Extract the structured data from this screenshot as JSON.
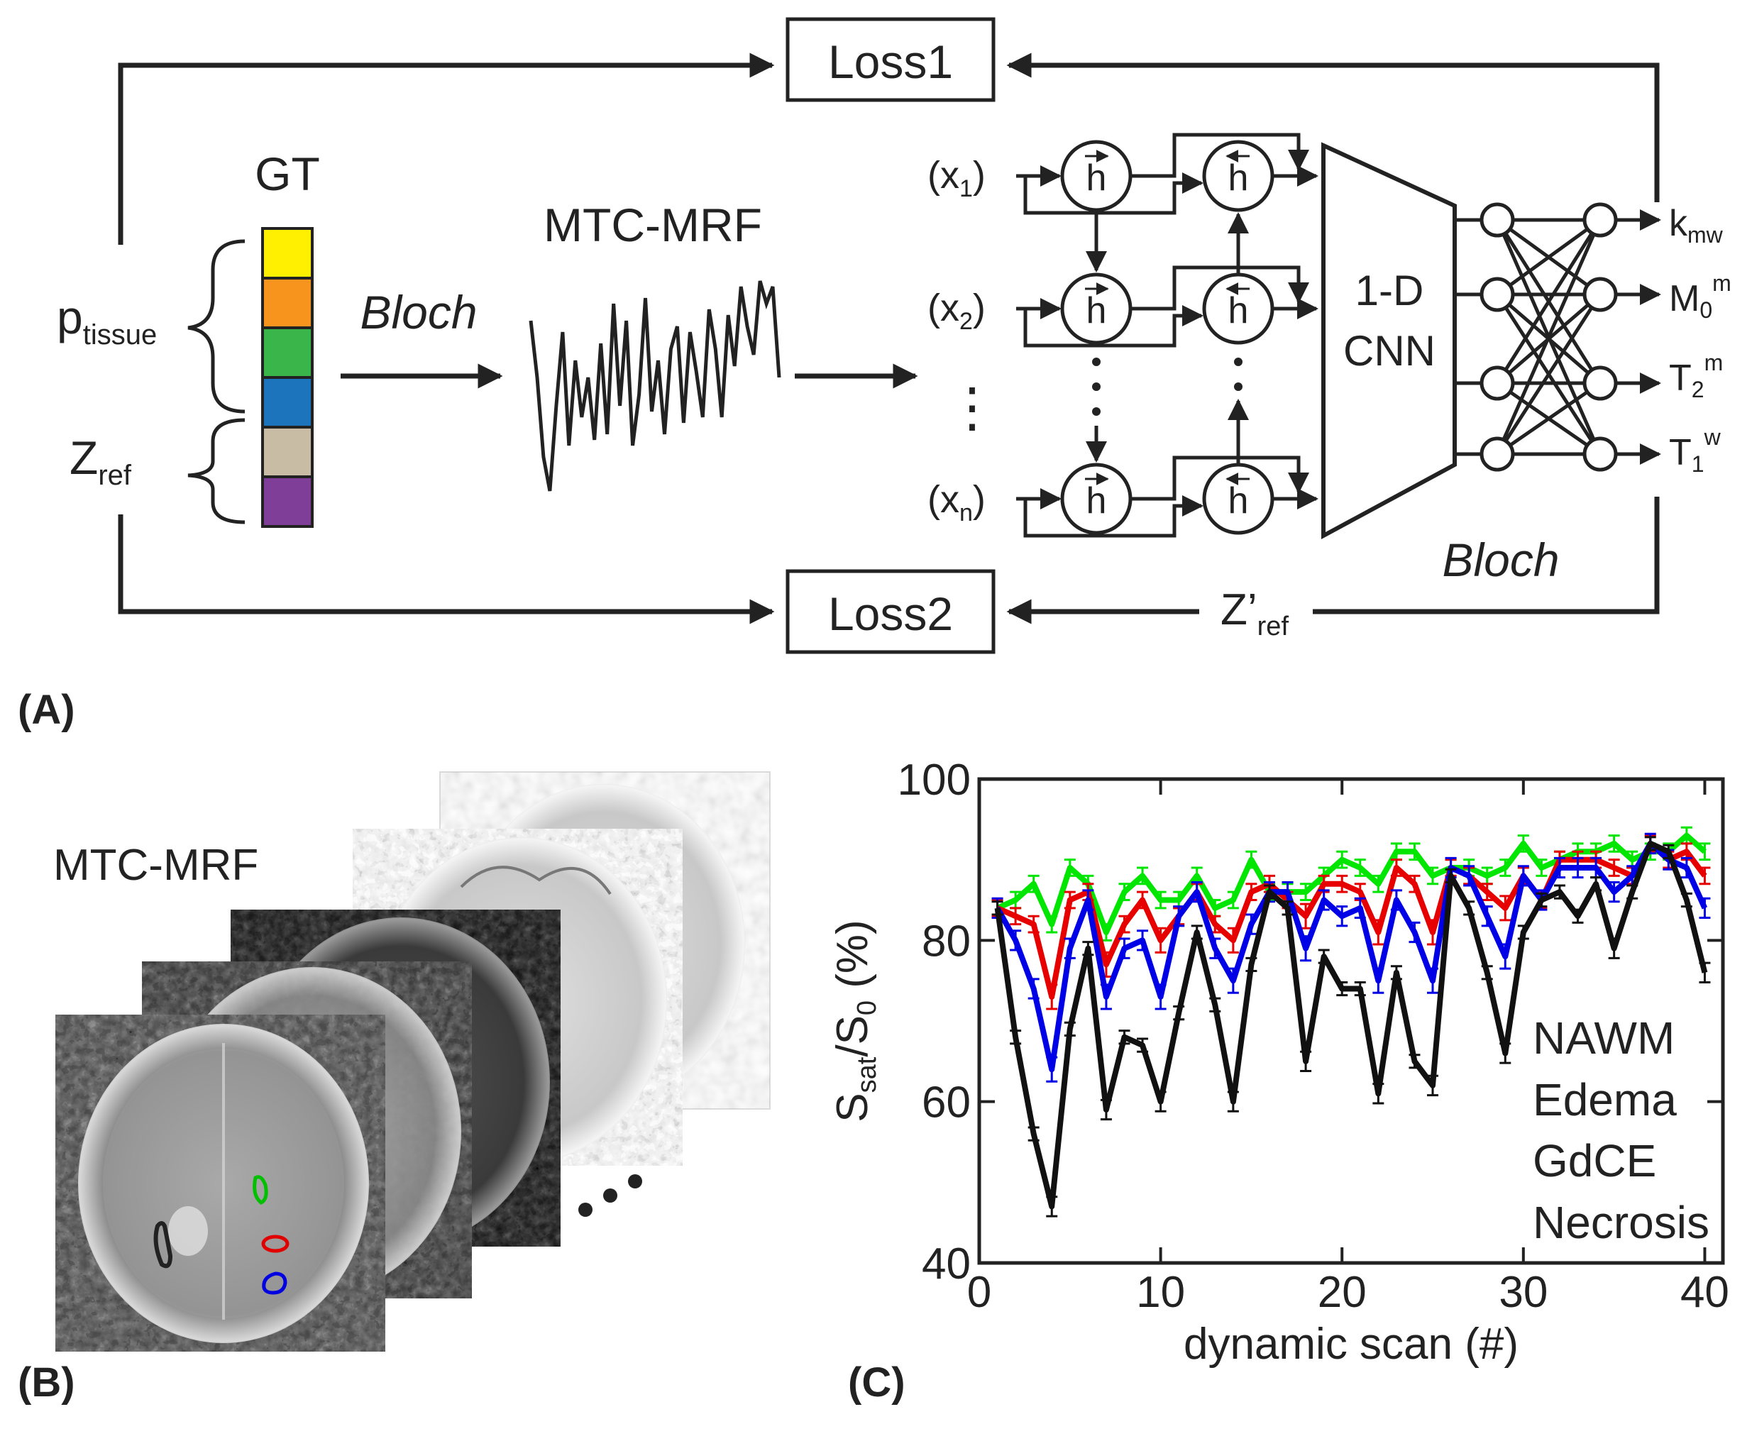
{
  "panel_a": {
    "label": "(A)",
    "loss1": "Loss1",
    "loss2": "Loss2",
    "gt": "GT",
    "p_tissue": {
      "main": "p",
      "sub": "tissue"
    },
    "z_ref": {
      "main": "Z",
      "sub": "ref"
    },
    "z_ref_prime": {
      "main": "Z’",
      "sub": "ref"
    },
    "bloch_left": "Bloch",
    "bloch_right": "Bloch",
    "signal_title": "MTC-MRF",
    "inputs": [
      {
        "main": "(x",
        "sub": "1",
        "close": ")"
      },
      {
        "main": "(x",
        "sub": "2",
        "close": ")"
      },
      {
        "main": "(x",
        "sub": "n",
        "close": ")"
      }
    ],
    "vdots": "⋮",
    "cnn_line1": "1-D",
    "cnn_line2": "CNN",
    "h_forward": "h",
    "h_backward": "h",
    "outputs": [
      {
        "main": "k",
        "sub": "mw",
        "sup": ""
      },
      {
        "main": "M",
        "sub": "0",
        "sup": "m"
      },
      {
        "main": "T",
        "sub": "2",
        "sup": "m"
      },
      {
        "main": "T",
        "sub": "1",
        "sup": "w"
      }
    ],
    "gt_colors": [
      "#ffef00",
      "#f7941d",
      "#39b54a",
      "#1c75bc",
      "#c8bca4",
      "#7f3f98"
    ],
    "signal_values": [
      0.55,
      0.05,
      -0.65,
      -0.95,
      -0.2,
      0.45,
      -0.55,
      0.2,
      -0.3,
      0.05,
      -0.5,
      0.35,
      -0.45,
      0.7,
      -0.2,
      0.55,
      -0.55,
      -0.1,
      0.75,
      -0.25,
      0.2,
      -0.45,
      0.3,
      0.5,
      -0.35,
      0.45,
      0.1,
      -0.3,
      0.65,
      0.3,
      -0.3,
      0.6,
      0.15,
      0.85,
      0.5,
      0.25,
      0.9,
      0.7,
      0.85,
      0.05
    ]
  },
  "panel_b": {
    "label": "(B)",
    "title": "MTC-MRF",
    "roi_colors": [
      "#222222",
      "#00c000",
      "#e00000",
      "#0000e0"
    ]
  },
  "panel_c": {
    "label": "(C)",
    "legend": [
      "NAWM",
      "Edema",
      "GdCE",
      "Necrosis"
    ]
  },
  "chart_data": {
    "type": "line",
    "title": "",
    "xlabel": "dynamic scan (#)",
    "ylabel": {
      "main": "S",
      "sub1": "sat",
      "mid": "/S",
      "sub2": "0",
      "tail": " (%)"
    },
    "xlim": [
      0,
      41
    ],
    "ylim": [
      40,
      100
    ],
    "xticks": [
      0,
      10,
      20,
      30,
      40
    ],
    "yticks": [
      40,
      60,
      80,
      100
    ],
    "x": [
      1,
      2,
      3,
      4,
      5,
      6,
      7,
      8,
      9,
      10,
      11,
      12,
      13,
      14,
      15,
      16,
      17,
      18,
      19,
      20,
      21,
      22,
      23,
      24,
      25,
      26,
      27,
      28,
      29,
      30,
      31,
      32,
      33,
      34,
      35,
      36,
      37,
      38,
      39,
      40
    ],
    "series": [
      {
        "name": "NAWM",
        "color": "#111111",
        "values": [
          84,
          68,
          56,
          47,
          69,
          79,
          59,
          68,
          67,
          60,
          71,
          81,
          72,
          60,
          77,
          86,
          84,
          65,
          78,
          74,
          74,
          61,
          76,
          65,
          62,
          88,
          84,
          76,
          66,
          81,
          85,
          86,
          83,
          87,
          79,
          86,
          92,
          91,
          85,
          76
        ],
        "err": [
          0.8,
          0.8,
          0.8,
          1.2,
          0.8,
          0.8,
          1.2,
          0.8,
          0.8,
          1.2,
          0.8,
          0.8,
          0.8,
          1.2,
          0.8,
          0.8,
          0.8,
          1.2,
          0.8,
          0.8,
          0.8,
          1.2,
          0.8,
          0.8,
          1.2,
          0.8,
          0.8,
          0.8,
          1.2,
          0.8,
          0.8,
          0.8,
          0.8,
          0.8,
          1.2,
          0.8,
          0.8,
          0.8,
          0.8,
          1.2
        ]
      },
      {
        "name": "Edema",
        "color": "#0000e6",
        "values": [
          84,
          80,
          74,
          64,
          79,
          85,
          73,
          79,
          80,
          73,
          83,
          86,
          79,
          75,
          82,
          86,
          86,
          79,
          85,
          83,
          84,
          75,
          85,
          81,
          75,
          89,
          88,
          83,
          78,
          88,
          85,
          89,
          89,
          89,
          86,
          88,
          92,
          90,
          89,
          84
        ],
        "err": [
          1.2,
          1.2,
          1.2,
          1.5,
          1.2,
          1.2,
          1.5,
          1.2,
          1.2,
          1.5,
          1.2,
          1.2,
          1.2,
          1.5,
          1.2,
          1.2,
          1.2,
          1.5,
          1.2,
          1.2,
          1.2,
          1.5,
          1.2,
          1.2,
          1.5,
          1.2,
          1.2,
          1.2,
          1.5,
          1.2,
          1.2,
          1.2,
          1.2,
          1.2,
          1.2,
          1.2,
          1.2,
          1.2,
          1.2,
          1.2
        ]
      },
      {
        "name": "GdCE",
        "color": "#e60000",
        "values": [
          84,
          83,
          82,
          73,
          85,
          86,
          77,
          82,
          85,
          80,
          83,
          86,
          82,
          80,
          86,
          87,
          85,
          83,
          87,
          87,
          86,
          81,
          89,
          87,
          81,
          89,
          88,
          86,
          84,
          88,
          85,
          90,
          90,
          90,
          89,
          88,
          92,
          90,
          91,
          88
        ],
        "err": [
          1,
          1,
          1,
          1.5,
          1,
          1,
          1.5,
          1,
          1,
          1.5,
          1,
          1,
          1,
          1.5,
          1,
          1,
          1,
          1.5,
          1,
          1,
          1,
          1.5,
          1,
          1,
          1.5,
          1,
          1,
          1,
          1.5,
          1,
          1,
          1,
          1,
          1,
          1,
          1,
          1,
          1,
          1,
          1
        ]
      },
      {
        "name": "Necrosis",
        "color": "#00e600",
        "values": [
          84,
          85,
          87,
          82,
          89,
          87,
          81,
          86,
          88,
          85,
          85,
          88,
          84,
          85,
          90,
          86,
          86,
          86,
          88,
          90,
          89,
          87,
          91,
          91,
          88,
          89,
          89,
          88,
          89,
          92,
          89,
          90,
          91,
          91,
          92,
          90,
          91,
          91,
          93,
          91
        ],
        "err": [
          1,
          1,
          1,
          1,
          1,
          1,
          1,
          1,
          1,
          1,
          1,
          1,
          1,
          1,
          1,
          1,
          1,
          1,
          1,
          1,
          1,
          1,
          1,
          1,
          1,
          1,
          1,
          1,
          1,
          1,
          1,
          1,
          1,
          1,
          1,
          1,
          1,
          1,
          1,
          1
        ]
      }
    ]
  }
}
